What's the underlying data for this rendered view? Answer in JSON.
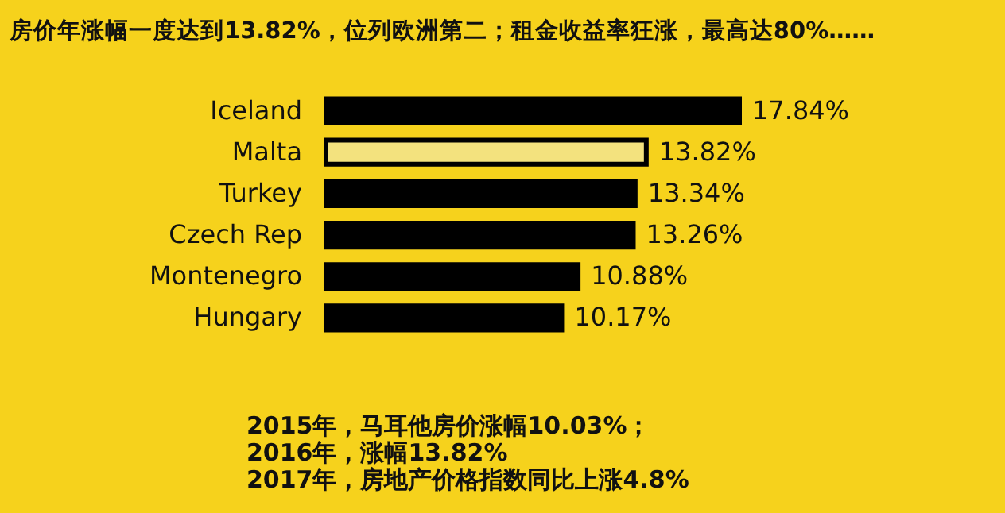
{
  "chart_data": {
    "type": "bar",
    "orientation": "horizontal",
    "title": "房价年涨幅一度达到13.82%，位列欧洲第二；租金收益率狂涨，最高达80%……",
    "categories": [
      "Iceland",
      "Malta",
      "Turkey",
      "Czech Rep",
      "Montenegro",
      "Hungary"
    ],
    "values": [
      17.84,
      13.82,
      13.34,
      13.26,
      10.88,
      10.17
    ],
    "colors": [
      "#000000",
      "#f3e27e",
      "#000000",
      "#000000",
      "#000000",
      "#000000"
    ],
    "value_labels": [
      "17.84%",
      "13.82%",
      "13.34%",
      "13.26%",
      "10.88%",
      "10.17%"
    ],
    "annotations": [
      "2015年，马耳他房价涨幅10.03%；",
      "2016年，涨幅13.82%",
      "2017年，房地产价格指数同比上涨4.8%"
    ]
  }
}
